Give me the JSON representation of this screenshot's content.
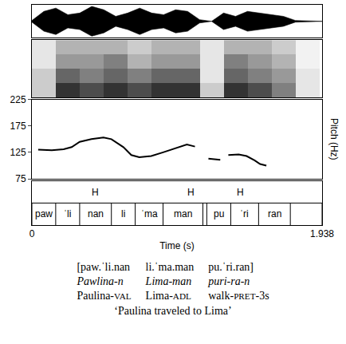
{
  "chart_data": [
    {
      "type": "area",
      "t": [
        0,
        0.08,
        0.16,
        0.24,
        0.32,
        0.4,
        0.48,
        0.56,
        0.64,
        0.72,
        0.8,
        0.88,
        0.96,
        1.04,
        1.12,
        1.2,
        1.28,
        1.36,
        1.44,
        1.52,
        1.6,
        1.68,
        1.76,
        1.84,
        1.938
      ],
      "amplitude": [
        0.05,
        0.6,
        0.8,
        0.4,
        0.5,
        0.9,
        0.7,
        0.3,
        0.5,
        0.8,
        0.5,
        0.4,
        0.7,
        0.6,
        0.1,
        0.0,
        0.5,
        0.3,
        0.6,
        0.5,
        0.4,
        0.3,
        0.05,
        0.02,
        0.0
      ],
      "ylim": [
        -1,
        1
      ],
      "color": "#000000"
    },
    {
      "type": "heatmap",
      "t": [
        0.08,
        0.24,
        0.4,
        0.56,
        0.72,
        0.88,
        1.04,
        1.2,
        1.36,
        1.52,
        1.68,
        1.84
      ],
      "z": [
        [
          0.2,
          0.8,
          0.7,
          0.8,
          0.7,
          0.8,
          0.8,
          0.2,
          0.8,
          0.7,
          0.5,
          0.1
        ],
        [
          0.2,
          0.6,
          0.5,
          0.6,
          0.5,
          0.6,
          0.6,
          0.1,
          0.6,
          0.5,
          0.4,
          0.1
        ],
        [
          0.1,
          0.4,
          0.4,
          0.5,
          0.3,
          0.4,
          0.4,
          0.1,
          0.5,
          0.4,
          0.3,
          0.05
        ],
        [
          0.1,
          0.3,
          0.3,
          0.3,
          0.2,
          0.3,
          0.3,
          0.1,
          0.3,
          0.3,
          0.2,
          0.05
        ]
      ],
      "zlim": [
        0,
        1
      ]
    },
    {
      "type": "line",
      "x": [
        0.042,
        0.133,
        0.212,
        0.266,
        0.319,
        0.398,
        0.478,
        0.531,
        0.611,
        0.664,
        0.717,
        0.797,
        0.876,
        0.956,
        1.035,
        1.089,
        1.13,
        1.179,
        1.221,
        1.258,
        1.285,
        1.312,
        1.381,
        1.434,
        1.487,
        1.524,
        1.566
      ],
      "values": [
        130,
        129,
        131,
        135,
        145,
        150,
        153,
        150,
        135,
        120,
        116,
        118,
        125,
        133,
        140,
        136,
        null,
        113,
        112,
        111,
        null,
        120,
        121,
        118,
        110,
        103,
        100
      ],
      "ylim": [
        75,
        225
      ],
      "yticks": [
        75,
        125,
        175,
        225
      ],
      "y_label": "Pitch (Hz)",
      "color": "#000000"
    }
  ],
  "tier": {
    "boundaries": [
      0,
      0.159,
      0.319,
      0.531,
      0.69,
      0.876,
      1.142,
      1.168,
      1.328,
      1.514,
      1.726,
      1.938
    ],
    "syllables": [
      "paw",
      "ˈli",
      "nan",
      "li",
      "ˈma",
      "man",
      null,
      "pu",
      "ˈri",
      "ran",
      null
    ],
    "tones": {
      "label": "H",
      "x": [
        0.425,
        1.062,
        1.392
      ]
    }
  },
  "time_axis": {
    "xlim": [
      0,
      1.938
    ],
    "xticks": [
      0,
      1.938
    ],
    "x_label": "Time (s)"
  },
  "gloss": {
    "transcription": [
      "[paw.ˈli.nan",
      "li.ˈma.man",
      "pu.ˈri.ran]"
    ],
    "words": [
      "Pawlina-n",
      "Lima-man",
      "puri-ra-n"
    ],
    "glosses": [
      "Paulina-VAL",
      "Lima-ADL",
      "walk-PRET-3s"
    ],
    "translation": "‘Paulina traveled to Lima’"
  }
}
